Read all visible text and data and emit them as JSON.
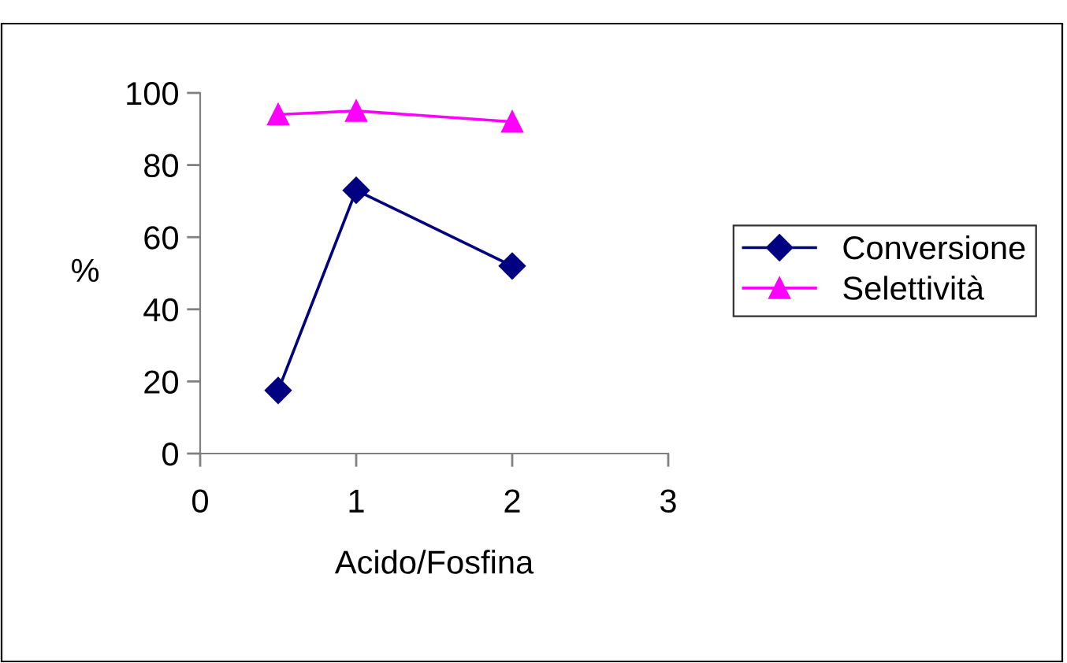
{
  "chart_data": {
    "type": "line",
    "xlabel": "Acido/Fosfina",
    "ylabel": "%",
    "x": [
      0.5,
      1,
      2
    ],
    "series": [
      {
        "name": "Conversione",
        "color": "#000080",
        "marker": "diamond",
        "values": [
          17.5,
          73,
          52
        ]
      },
      {
        "name": "Selettività",
        "color": "#ff00ff",
        "marker": "triangle",
        "values": [
          94,
          95,
          92
        ]
      }
    ],
    "xlim": [
      0,
      3
    ],
    "xticks": [
      0,
      1,
      2,
      3
    ],
    "ylim": [
      0,
      100
    ],
    "yticks": [
      0,
      20,
      40,
      60,
      80,
      100
    ],
    "grid": false,
    "legend": "right",
    "line_style": "solid"
  }
}
